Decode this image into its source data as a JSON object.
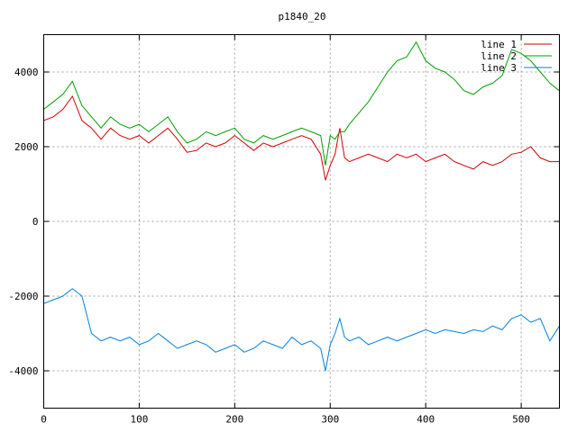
{
  "chart_data": {
    "type": "line",
    "title": "p1840_20",
    "xlabel": "",
    "ylabel": "",
    "xlim": [
      0,
      540
    ],
    "ylim": [
      -5000,
      5000
    ],
    "grid": true,
    "legend_position": "top-right",
    "x_ticks": [
      0,
      100,
      200,
      300,
      400,
      500
    ],
    "y_ticks": [
      -4000,
      -2000,
      0,
      2000,
      4000
    ],
    "x_tick_labels": [
      "0",
      "100",
      "200",
      "300",
      "400",
      "500"
    ],
    "y_tick_labels": [
      "-4000",
      "-2000",
      "0",
      "2000",
      "4000"
    ],
    "series": [
      {
        "name": "line 1",
        "color": "#d40000",
        "x": [
          0,
          10,
          20,
          30,
          40,
          50,
          60,
          70,
          80,
          90,
          100,
          110,
          120,
          130,
          140,
          150,
          160,
          170,
          180,
          190,
          200,
          210,
          220,
          230,
          240,
          250,
          260,
          270,
          280,
          290,
          295,
          300,
          305,
          310,
          315,
          320,
          330,
          340,
          350,
          360,
          370,
          380,
          390,
          400,
          410,
          420,
          430,
          440,
          450,
          460,
          470,
          480,
          490,
          500,
          510,
          520,
          530,
          540
        ],
        "y": [
          2700,
          2800,
          3000,
          3350,
          2700,
          2500,
          2200,
          2500,
          2300,
          2200,
          2300,
          2100,
          2300,
          2500,
          2200,
          1850,
          1900,
          2100,
          2000,
          2100,
          2300,
          2100,
          1900,
          2100,
          2000,
          2100,
          2200,
          2300,
          2200,
          1800,
          1100,
          1500,
          1800,
          2500,
          1700,
          1600,
          1700,
          1800,
          1700,
          1600,
          1800,
          1700,
          1800,
          1600,
          1700,
          1800,
          1600,
          1500,
          1400,
          1600,
          1500,
          1600,
          1800,
          1850,
          2000,
          1700,
          1600,
          1600
        ]
      },
      {
        "name": "line 2",
        "color": "#00a000",
        "x": [
          0,
          10,
          20,
          30,
          40,
          50,
          60,
          70,
          80,
          90,
          100,
          110,
          120,
          130,
          140,
          150,
          160,
          170,
          180,
          190,
          200,
          210,
          220,
          230,
          240,
          250,
          260,
          270,
          280,
          290,
          295,
          300,
          305,
          310,
          315,
          320,
          330,
          340,
          350,
          360,
          370,
          380,
          390,
          400,
          410,
          420,
          430,
          440,
          450,
          460,
          470,
          480,
          490,
          500,
          510,
          520,
          530,
          540
        ],
        "y": [
          3000,
          3200,
          3400,
          3750,
          3100,
          2800,
          2500,
          2800,
          2600,
          2500,
          2600,
          2400,
          2600,
          2800,
          2400,
          2100,
          2200,
          2400,
          2300,
          2400,
          2500,
          2200,
          2100,
          2300,
          2200,
          2300,
          2400,
          2500,
          2400,
          2300,
          1500,
          2300,
          2200,
          2400,
          2400,
          2600,
          2900,
          3200,
          3600,
          4000,
          4300,
          4400,
          4800,
          4300,
          4100,
          4000,
          3800,
          3500,
          3400,
          3600,
          3700,
          3900,
          4600,
          4500,
          4300,
          4000,
          3700,
          3500
        ]
      },
      {
        "name": "line 3",
        "color": "#0080e0",
        "x": [
          0,
          10,
          20,
          30,
          40,
          50,
          60,
          70,
          80,
          90,
          100,
          110,
          120,
          130,
          140,
          150,
          160,
          170,
          180,
          190,
          200,
          210,
          220,
          230,
          240,
          250,
          260,
          270,
          280,
          290,
          295,
          300,
          305,
          310,
          315,
          320,
          330,
          340,
          350,
          360,
          370,
          380,
          390,
          400,
          410,
          420,
          430,
          440,
          450,
          460,
          470,
          480,
          490,
          500,
          510,
          520,
          530,
          540
        ],
        "y": [
          -2200,
          -2100,
          -2000,
          -1800,
          -2000,
          -3000,
          -3200,
          -3100,
          -3200,
          -3100,
          -3300,
          -3200,
          -3000,
          -3200,
          -3400,
          -3300,
          -3200,
          -3300,
          -3500,
          -3400,
          -3300,
          -3500,
          -3400,
          -3200,
          -3300,
          -3400,
          -3100,
          -3300,
          -3200,
          -3400,
          -4000,
          -3300,
          -3000,
          -2600,
          -3100,
          -3200,
          -3100,
          -3300,
          -3200,
          -3100,
          -3200,
          -3100,
          -3000,
          -2900,
          -3000,
          -2900,
          -2950,
          -3000,
          -2900,
          -2950,
          -2800,
          -2900,
          -2600,
          -2500,
          -2700,
          -2600,
          -3200,
          -2800
        ]
      }
    ]
  }
}
